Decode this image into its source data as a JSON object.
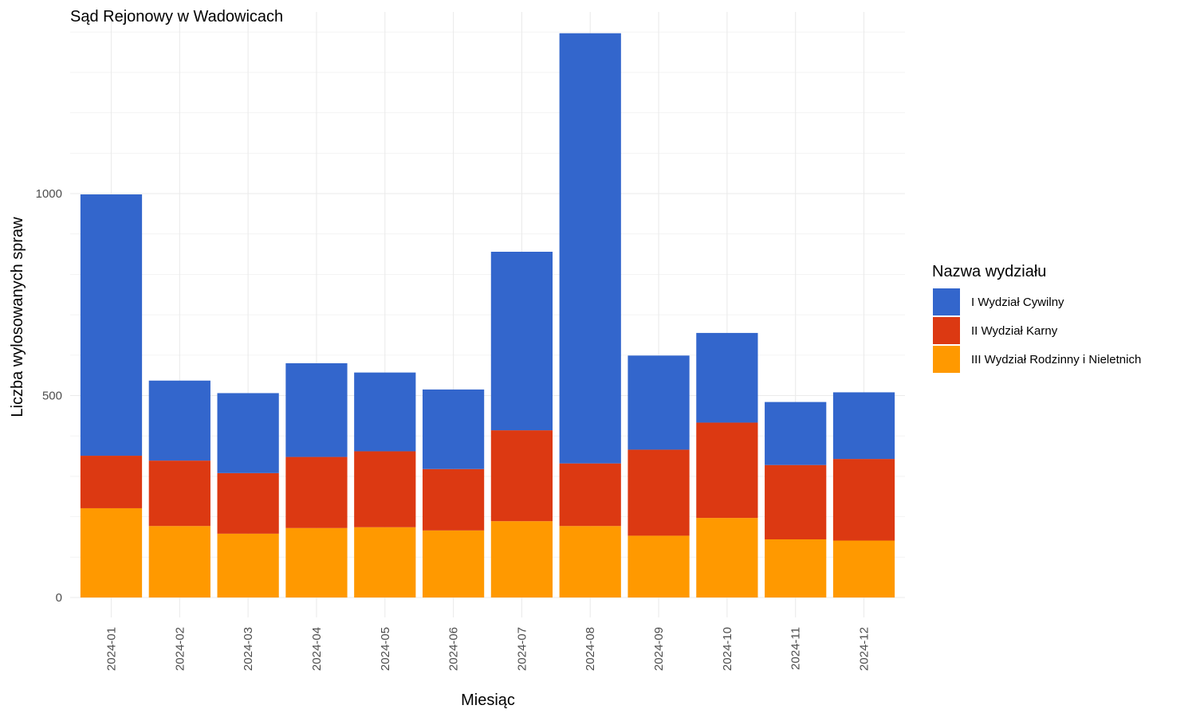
{
  "chart_data": {
    "type": "bar",
    "stacked": true,
    "title": "Sąd Rejonowy w Wadowicach",
    "xlabel": "Miesiąc",
    "ylabel": "Liczba wylosowanych spraw",
    "ylim": [
      0,
      1400
    ],
    "yticks": [
      0,
      500,
      1000
    ],
    "ytick_labels": [
      "0",
      "500",
      "1000"
    ],
    "grid": true,
    "legend_title": "Nazwa wydziału",
    "legend_position": "right",
    "categories": [
      "2024-01",
      "2024-02",
      "2024-03",
      "2024-04",
      "2024-05",
      "2024-06",
      "2024-07",
      "2024-08",
      "2024-09",
      "2024-10",
      "2024-11",
      "2024-12"
    ],
    "series": [
      {
        "name": "I Wydział Cywilny",
        "color": "#3366CC",
        "values": [
          647,
          198,
          198,
          232,
          195,
          197,
          442,
          1065,
          233,
          222,
          156,
          165
        ]
      },
      {
        "name": "II Wydział Karny",
        "color": "#DC3912",
        "values": [
          130,
          162,
          150,
          176,
          188,
          152,
          225,
          155,
          213,
          236,
          184,
          202
        ]
      },
      {
        "name": "III Wydział Rodzinny i Nieletnich",
        "color": "#FF9900",
        "values": [
          221,
          177,
          158,
          172,
          174,
          166,
          189,
          177,
          153,
          197,
          144,
          141
        ]
      }
    ]
  }
}
